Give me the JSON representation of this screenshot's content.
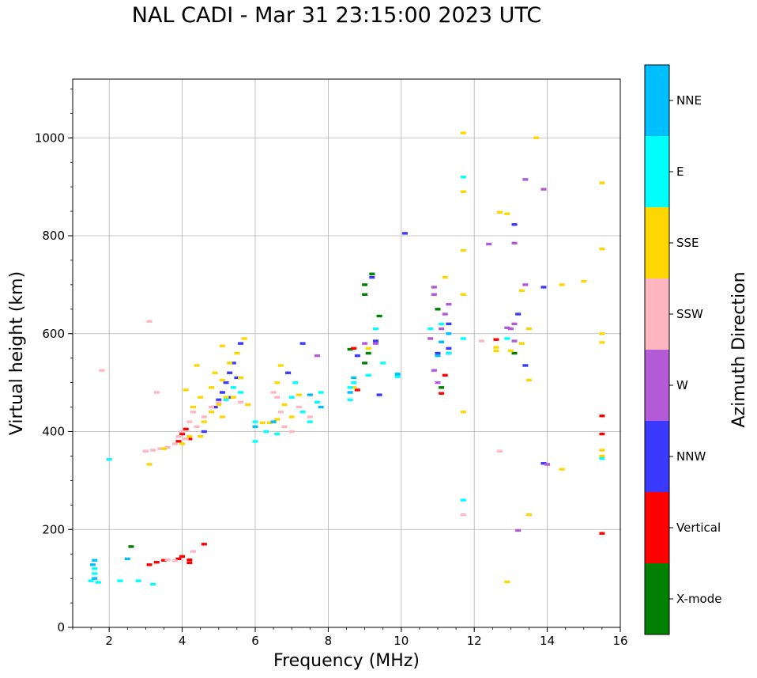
{
  "chart_data": {
    "type": "scatter",
    "title": "NAL CADI - Mar 31 23:15:00 2023 UTC",
    "xlabel": "Frequency (MHz)",
    "ylabel": "Virtual height (km)",
    "xlim": [
      1,
      16
    ],
    "ylim": [
      0,
      1120
    ],
    "xticks": [
      "2",
      "4",
      "6",
      "8",
      "10",
      "12",
      "14",
      "16"
    ],
    "yticks": [
      "0",
      "200",
      "400",
      "600",
      "800",
      "1000"
    ],
    "grid": true,
    "colorbar": {
      "label": "Azimuth Direction",
      "categories": [
        {
          "name": "X-mode",
          "color": "#008000"
        },
        {
          "name": "Vertical",
          "color": "#ff0000"
        },
        {
          "name": "NNW",
          "color": "#3a3aff"
        },
        {
          "name": "W",
          "color": "#b35ad6"
        },
        {
          "name": "SSW",
          "color": "#ffb6c1"
        },
        {
          "name": "SSE",
          "color": "#ffd700"
        },
        {
          "name": "E",
          "color": "#00ffff"
        },
        {
          "name": "NNE",
          "color": "#00bfff"
        }
      ]
    },
    "series": [
      {
        "name": "X-mode",
        "points": [
          [
            2.6,
            165
          ],
          [
            8.6,
            568
          ],
          [
            9.0,
            700
          ],
          [
            9.0,
            680
          ],
          [
            9.2,
            722
          ],
          [
            9.4,
            636
          ],
          [
            9.1,
            560
          ],
          [
            11.0,
            650
          ],
          [
            11.3,
            560
          ],
          [
            13.1,
            560
          ],
          [
            9.0,
            540
          ],
          [
            11.1,
            490
          ]
        ]
      },
      {
        "name": "Vertical",
        "points": [
          [
            3.1,
            128
          ],
          [
            3.3,
            133
          ],
          [
            3.5,
            137
          ],
          [
            3.9,
            140
          ],
          [
            4.0,
            145
          ],
          [
            4.2,
            138
          ],
          [
            4.2,
            132
          ],
          [
            4.6,
            170
          ],
          [
            3.9,
            380
          ],
          [
            4.0,
            395
          ],
          [
            4.1,
            405
          ],
          [
            4.2,
            385
          ],
          [
            8.8,
            485
          ],
          [
            11.2,
            515
          ],
          [
            11.1,
            478
          ],
          [
            12.6,
            588
          ],
          [
            15.5,
            432
          ],
          [
            15.5,
            395
          ],
          [
            15.5,
            192
          ],
          [
            8.7,
            570
          ]
        ]
      },
      {
        "name": "NNW",
        "points": [
          [
            4.6,
            400
          ],
          [
            4.9,
            450
          ],
          [
            5.1,
            480
          ],
          [
            5.2,
            500
          ],
          [
            5.3,
            520
          ],
          [
            5.4,
            540
          ],
          [
            5.5,
            510
          ],
          [
            5.3,
            470
          ],
          [
            5.0,
            465
          ],
          [
            5.6,
            580
          ],
          [
            10.1,
            805
          ],
          [
            13.1,
            823
          ],
          [
            13.9,
            695
          ],
          [
            13.4,
            535
          ],
          [
            13.9,
            335
          ],
          [
            11.0,
            560
          ],
          [
            11.3,
            620
          ],
          [
            9.4,
            475
          ],
          [
            7.3,
            580
          ],
          [
            6.9,
            520
          ],
          [
            9.3,
            585
          ],
          [
            8.8,
            555
          ],
          [
            9.2,
            715
          ],
          [
            11.3,
            570
          ],
          [
            13.2,
            640
          ]
        ]
      },
      {
        "name": "W",
        "points": [
          [
            10.9,
            695
          ],
          [
            10.9,
            680
          ],
          [
            11.3,
            660
          ],
          [
            11.2,
            640
          ],
          [
            10.9,
            525
          ],
          [
            13.1,
            785
          ],
          [
            13.4,
            700
          ],
          [
            13.1,
            620
          ],
          [
            13.0,
            610
          ],
          [
            13.1,
            585
          ],
          [
            13.4,
            915
          ],
          [
            13.9,
            895
          ],
          [
            13.2,
            198
          ],
          [
            14.0,
            333
          ],
          [
            12.4,
            783
          ],
          [
            9.0,
            580
          ],
          [
            9.3,
            580
          ],
          [
            11.1,
            610
          ],
          [
            7.7,
            555
          ],
          [
            10.8,
            590
          ],
          [
            12.9,
            612
          ],
          [
            11.0,
            500
          ]
        ]
      },
      {
        "name": "SSW",
        "points": [
          [
            3.0,
            360
          ],
          [
            3.2,
            362
          ],
          [
            3.4,
            365
          ],
          [
            3.6,
            368
          ],
          [
            3.8,
            375
          ],
          [
            3.9,
            390
          ],
          [
            4.0,
            400
          ],
          [
            4.1,
            385
          ],
          [
            4.2,
            420
          ],
          [
            4.3,
            440
          ],
          [
            4.4,
            410
          ],
          [
            4.6,
            430
          ],
          [
            4.8,
            450
          ],
          [
            5.0,
            460
          ],
          [
            6.6,
            470
          ],
          [
            6.7,
            440
          ],
          [
            6.8,
            410
          ],
          [
            7.0,
            400
          ],
          [
            7.2,
            450
          ],
          [
            7.5,
            430
          ],
          [
            3.1,
            625
          ],
          [
            1.8,
            525
          ],
          [
            3.3,
            480
          ],
          [
            12.7,
            360
          ],
          [
            11.7,
            230
          ],
          [
            4.3,
            155
          ],
          [
            3.6,
            138
          ],
          [
            3.8,
            136
          ],
          [
            12.2,
            585
          ],
          [
            6.5,
            480
          ],
          [
            5.6,
            460
          ]
        ]
      },
      {
        "name": "SSE",
        "points": [
          [
            3.1,
            333
          ],
          [
            3.5,
            365
          ],
          [
            4.0,
            375
          ],
          [
            4.2,
            390
          ],
          [
            4.5,
            390
          ],
          [
            4.6,
            420
          ],
          [
            4.8,
            440
          ],
          [
            5.0,
            455
          ],
          [
            5.1,
            430
          ],
          [
            5.2,
            470
          ],
          [
            5.4,
            470
          ],
          [
            5.6,
            510
          ],
          [
            5.7,
            590
          ],
          [
            5.5,
            560
          ],
          [
            5.3,
            540
          ],
          [
            5.1,
            505
          ],
          [
            4.8,
            490
          ],
          [
            4.5,
            470
          ],
          [
            4.3,
            450
          ],
          [
            4.1,
            485
          ],
          [
            4.9,
            520
          ],
          [
            5.1,
            575
          ],
          [
            6.2,
            418
          ],
          [
            6.4,
            418
          ],
          [
            6.6,
            425
          ],
          [
            6.6,
            500
          ],
          [
            6.7,
            535
          ],
          [
            6.8,
            455
          ],
          [
            7.0,
            430
          ],
          [
            7.2,
            475
          ],
          [
            11.7,
            1010
          ],
          [
            11.7,
            890
          ],
          [
            11.7,
            770
          ],
          [
            11.7,
            680
          ],
          [
            11.7,
            440
          ],
          [
            12.7,
            848
          ],
          [
            12.9,
            845
          ],
          [
            13.7,
            1000
          ],
          [
            13.3,
            688
          ],
          [
            13.3,
            580
          ],
          [
            13.5,
            610
          ],
          [
            13.5,
            505
          ],
          [
            13.5,
            230
          ],
          [
            14.4,
            700
          ],
          [
            14.4,
            323
          ],
          [
            15.0,
            707
          ],
          [
            15.5,
            908
          ],
          [
            15.5,
            773
          ],
          [
            15.5,
            600
          ],
          [
            15.5,
            582
          ],
          [
            15.5,
            362
          ],
          [
            15.5,
            350
          ],
          [
            12.9,
            93
          ],
          [
            12.6,
            565
          ],
          [
            12.6,
            572
          ],
          [
            13.0,
            565
          ],
          [
            11.2,
            715
          ],
          [
            9.1,
            570
          ],
          [
            8.7,
            490
          ],
          [
            4.4,
            535
          ],
          [
            5.8,
            455
          ]
        ]
      },
      {
        "name": "E",
        "points": [
          [
            1.5,
            95
          ],
          [
            1.6,
            120
          ],
          [
            1.6,
            110
          ],
          [
            1.7,
            92
          ],
          [
            2.0,
            343
          ],
          [
            2.3,
            95
          ],
          [
            2.8,
            95
          ],
          [
            3.2,
            88
          ],
          [
            5.2,
            465
          ],
          [
            5.4,
            490
          ],
          [
            5.6,
            480
          ],
          [
            6.0,
            420
          ],
          [
            6.0,
            380
          ],
          [
            6.3,
            400
          ],
          [
            6.5,
            420
          ],
          [
            6.6,
            395
          ],
          [
            7.0,
            470
          ],
          [
            7.1,
            500
          ],
          [
            7.3,
            440
          ],
          [
            7.5,
            420
          ],
          [
            7.7,
            460
          ],
          [
            7.8,
            480
          ],
          [
            8.6,
            465
          ],
          [
            8.6,
            490
          ],
          [
            9.3,
            610
          ],
          [
            9.5,
            540
          ],
          [
            9.9,
            518
          ],
          [
            9.9,
            512
          ],
          [
            10.8,
            610
          ],
          [
            11.1,
            620
          ],
          [
            11.7,
            920
          ],
          [
            11.7,
            260
          ],
          [
            11.7,
            590
          ],
          [
            15.5,
            345
          ],
          [
            9.1,
            515
          ],
          [
            11.3,
            560
          ],
          [
            12.9,
            590
          ],
          [
            8.7,
            500
          ]
        ]
      },
      {
        "name": "NNE",
        "points": [
          [
            1.6,
            137
          ],
          [
            1.55,
            128
          ],
          [
            1.6,
            100
          ],
          [
            2.5,
            140
          ],
          [
            7.5,
            475
          ],
          [
            7.8,
            450
          ],
          [
            8.6,
            480
          ],
          [
            8.7,
            510
          ],
          [
            11.0,
            555
          ],
          [
            11.1,
            583
          ],
          [
            11.3,
            600
          ],
          [
            6.5,
            420
          ],
          [
            6.0,
            410
          ],
          [
            9.9,
            517
          ]
        ]
      }
    ]
  }
}
